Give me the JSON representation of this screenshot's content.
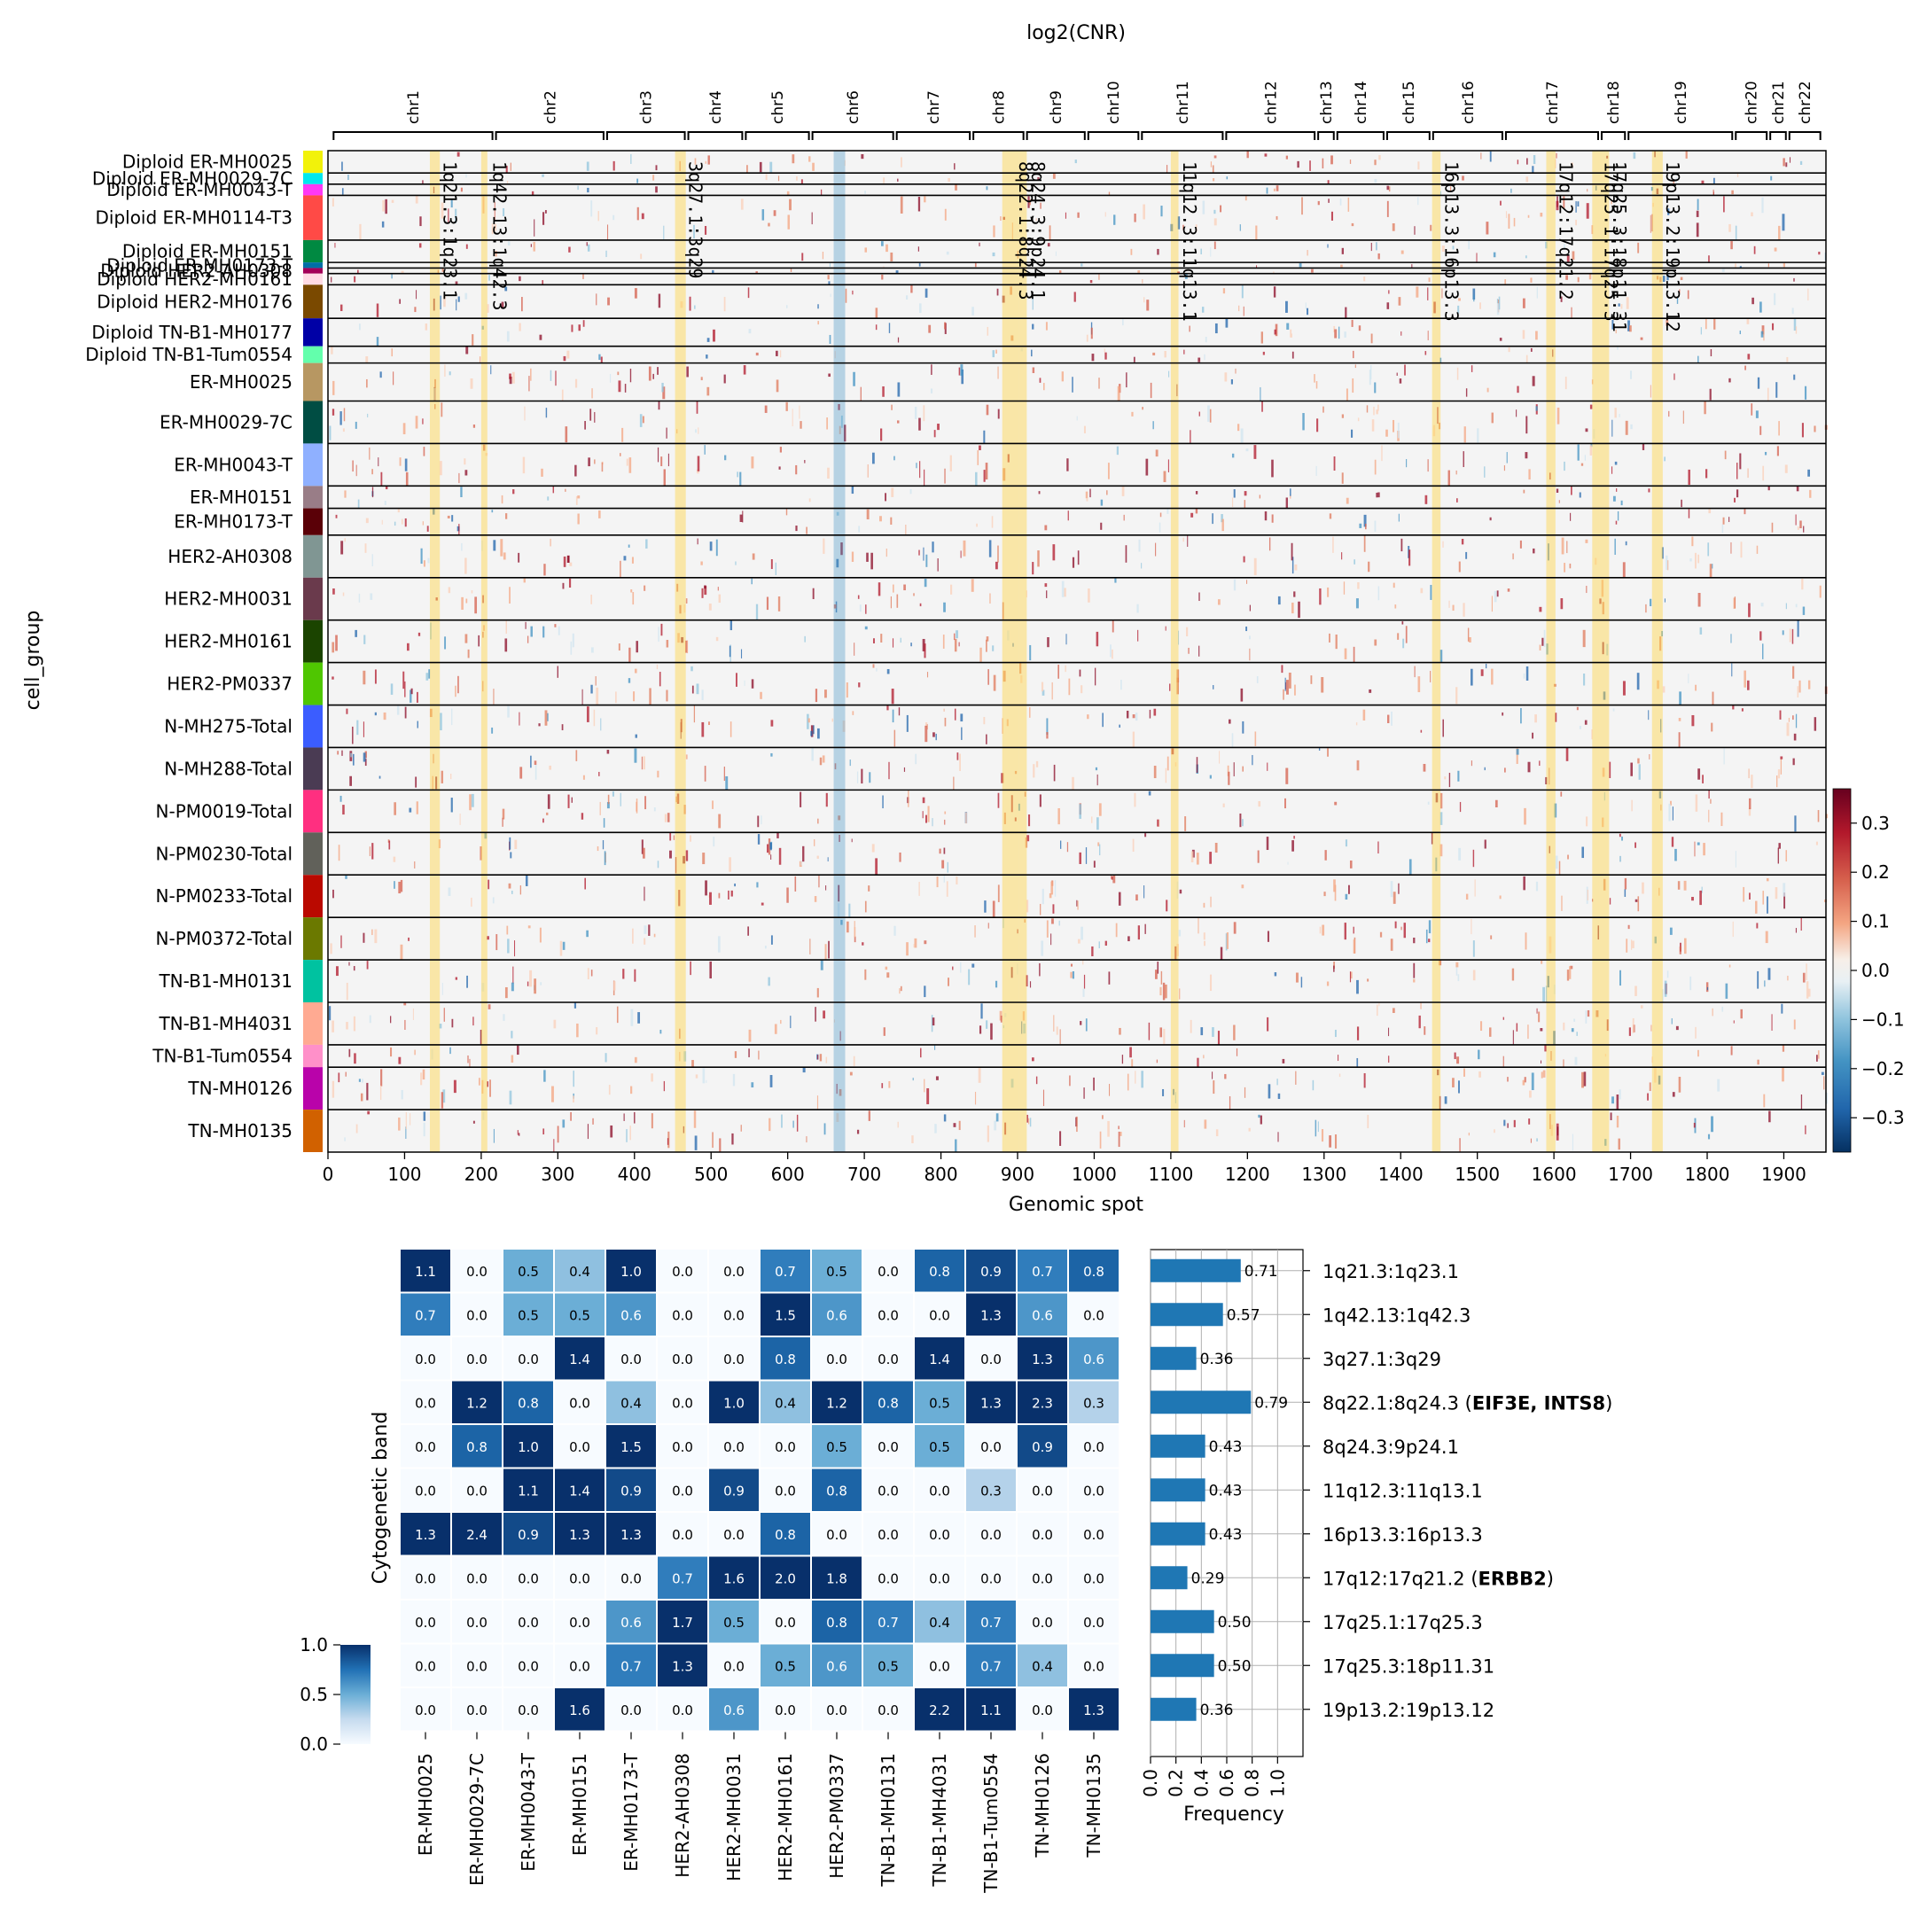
{
  "figure": {
    "title": "log2(CNR)"
  },
  "chart_data": [
    {
      "type": "heatmap",
      "title": "log2(CNR)",
      "xlabel": "Genomic spot",
      "ylabel": "cell_group",
      "xlim": [
        0,
        1955
      ],
      "xticks": [
        "0",
        "100",
        "200",
        "300",
        "400",
        "500",
        "600",
        "700",
        "800",
        "900",
        "1000",
        "1100",
        "1200",
        "1300",
        "1400",
        "1500",
        "1600",
        "1700",
        "1800",
        "1900"
      ],
      "chromosomes": [
        {
          "name": "chr1",
          "start": 5,
          "end": 217
        },
        {
          "name": "chr2",
          "start": 217,
          "end": 362
        },
        {
          "name": "chr3",
          "start": 362,
          "end": 468
        },
        {
          "name": "chr4",
          "start": 468,
          "end": 543
        },
        {
          "name": "chr5",
          "start": 543,
          "end": 630
        },
        {
          "name": "chr6",
          "start": 630,
          "end": 740
        },
        {
          "name": "chr7",
          "start": 740,
          "end": 840
        },
        {
          "name": "chr8",
          "start": 840,
          "end": 910
        },
        {
          "name": "chr9",
          "start": 910,
          "end": 990
        },
        {
          "name": "chr10",
          "start": 990,
          "end": 1060
        },
        {
          "name": "chr11",
          "start": 1060,
          "end": 1170
        },
        {
          "name": "chr12",
          "start": 1170,
          "end": 1290
        },
        {
          "name": "chr13",
          "start": 1290,
          "end": 1315
        },
        {
          "name": "chr14",
          "start": 1315,
          "end": 1380
        },
        {
          "name": "chr15",
          "start": 1380,
          "end": 1440
        },
        {
          "name": "chr16",
          "start": 1440,
          "end": 1535
        },
        {
          "name": "chr17",
          "start": 1535,
          "end": 1660
        },
        {
          "name": "chr18",
          "start": 1660,
          "end": 1695
        },
        {
          "name": "chr19",
          "start": 1695,
          "end": 1835
        },
        {
          "name": "chr20",
          "start": 1835,
          "end": 1880
        },
        {
          "name": "chr21",
          "start": 1880,
          "end": 1905
        },
        {
          "name": "chr22",
          "start": 1905,
          "end": 1950
        }
      ],
      "highlights": [
        {
          "label": "1q21.3:1q23.1",
          "start": 133,
          "end": 146
        },
        {
          "label": "1q42.13:1q42.3",
          "start": 200,
          "end": 208
        },
        {
          "label": "3q27.1:3q29",
          "start": 453,
          "end": 467
        },
        {
          "label": "8q22.1:8q24.3",
          "start": 880,
          "end": 902
        },
        {
          "label": "8q24.3:9p24.1",
          "start": 902,
          "end": 912
        },
        {
          "label": "11q12.3:11q13.1",
          "start": 1100,
          "end": 1110
        },
        {
          "label": "16p13.3:16p13.3",
          "start": 1441,
          "end": 1452
        },
        {
          "label": "17q12:17q21.2",
          "start": 1590,
          "end": 1602
        },
        {
          "label": "17q25.1:17q25.3",
          "start": 1650,
          "end": 1660
        },
        {
          "label": "17q25.3:18p11.31",
          "start": 1660,
          "end": 1672
        },
        {
          "label": "19p13.2:19p13.12",
          "start": 1728,
          "end": 1742
        }
      ],
      "cell_groups": [
        {
          "name": "Diploid ER-MH0025",
          "color": "#f2f20a",
          "rows": 1
        },
        {
          "name": "Diploid ER-MH0029-7C",
          "color": "#00e8ee",
          "rows": 0.5
        },
        {
          "name": "Diploid ER-MH0043-T",
          "color": "#ff38f5",
          "rows": 0.5
        },
        {
          "name": "Diploid ER-MH0114-T3",
          "color": "#ff4a46",
          "rows": 2
        },
        {
          "name": "Diploid ER-MH0151",
          "color": "#008941",
          "rows": 1
        },
        {
          "name": "Diploid ER-MH0173-T",
          "color": "#006fa6",
          "rows": 0.25
        },
        {
          "name": "Diploid HER2-AH0308",
          "color": "#a30059",
          "rows": 0.25
        },
        {
          "name": "Diploid HER2-MH0161",
          "color": "#ffdbe5",
          "rows": 0.5
        },
        {
          "name": "Diploid HER2-MH0176",
          "color": "#7a4900",
          "rows": 1.5
        },
        {
          "name": "Diploid TN-B1-MH0177",
          "color": "#0000a6",
          "rows": 1.25
        },
        {
          "name": "Diploid TN-B1-Tum0554",
          "color": "#63ffac",
          "rows": 0.75
        },
        {
          "name": "ER-MH0025",
          "color": "#b79762",
          "rows": 1.7
        },
        {
          "name": "ER-MH0029-7C",
          "color": "#004d43",
          "rows": 1.9
        },
        {
          "name": "ER-MH0043-T",
          "color": "#8fb0ff",
          "rows": 1.9
        },
        {
          "name": "ER-MH0151",
          "color": "#997d87",
          "rows": 1
        },
        {
          "name": "ER-MH0173-T",
          "color": "#5a0007",
          "rows": 1.2
        },
        {
          "name": "HER2-AH0308",
          "color": "#809693",
          "rows": 1.9
        },
        {
          "name": "HER2-MH0031",
          "color": "#6a3a4c",
          "rows": 1.9
        },
        {
          "name": "HER2-MH0161",
          "color": "#1b4400",
          "rows": 1.9
        },
        {
          "name": "HER2-PM0337",
          "color": "#4fc601",
          "rows": 1.9
        },
        {
          "name": "N-MH275-Total",
          "color": "#3b5dff",
          "rows": 1.9
        },
        {
          "name": "N-MH288-Total",
          "color": "#4a3b53",
          "rows": 1.9
        },
        {
          "name": "N-PM0019-Total",
          "color": "#ff2f80",
          "rows": 1.9
        },
        {
          "name": "N-PM0230-Total",
          "color": "#61615a",
          "rows": 1.9
        },
        {
          "name": "N-PM0233-Total",
          "color": "#ba0900",
          "rows": 1.9
        },
        {
          "name": "N-PM0372-Total",
          "color": "#6b7900",
          "rows": 1.9
        },
        {
          "name": "TN-B1-MH0131",
          "color": "#00c2a0",
          "rows": 1.9
        },
        {
          "name": "TN-B1-MH4031",
          "color": "#ffaa92",
          "rows": 1.9
        },
        {
          "name": "TN-B1-Tum0554",
          "color": "#ff90c9",
          "rows": 1
        },
        {
          "name": "TN-MH0126",
          "color": "#b903aa",
          "rows": 1.9
        },
        {
          "name": "TN-MH0135",
          "color": "#d16100",
          "rows": 1.9
        }
      ],
      "colorbar": {
        "vmin": -0.37,
        "vmax": 0.37,
        "ticks": [
          "0.3",
          "0.2",
          "0.1",
          "0.0",
          "−0.1",
          "−0.2",
          "−0.3"
        ],
        "colormap": "RdBu_r"
      }
    },
    {
      "type": "heatmap",
      "ylabel": "Cytogenetic band",
      "columns": [
        "ER-MH0025",
        "ER-MH0029-7C",
        "ER-MH0043-T",
        "ER-MH0151",
        "ER-MH0173-T",
        "HER2-AH0308",
        "HER2-MH0031",
        "HER2-MH0161",
        "HER2-PM0337",
        "TN-B1-MH0131",
        "TN-B1-MH4031",
        "TN-B1-Tum0554",
        "TN-MH0126",
        "TN-MH0135"
      ],
      "rows": [
        "1q21.3:1q23.1",
        "1q42.13:1q42.3",
        "3q27.1:3q29",
        "8q22.1:8q24.3",
        "8q24.3:9p24.1",
        "11q12.3:11q13.1",
        "16p13.3:16p13.3",
        "17q12:17q21.2",
        "17q25.1:17q25.3",
        "17q25.3:18p11.31",
        "19p13.2:19p13.12"
      ],
      "values": [
        [
          "1.1",
          "0.0",
          "0.5",
          "0.4",
          "1.0",
          "0.0",
          "0.0",
          "0.7",
          "0.5",
          "0.0",
          "0.8",
          "0.9",
          "0.7",
          "0.8"
        ],
        [
          "0.7",
          "0.0",
          "0.5",
          "0.5",
          "0.6",
          "0.0",
          "0.0",
          "1.5",
          "0.6",
          "0.0",
          "0.0",
          "1.3",
          "0.6",
          "0.0"
        ],
        [
          "0.0",
          "0.0",
          "0.0",
          "1.4",
          "0.0",
          "0.0",
          "0.0",
          "0.8",
          "0.0",
          "0.0",
          "1.4",
          "0.0",
          "1.3",
          "0.6"
        ],
        [
          "0.0",
          "1.2",
          "0.8",
          "0.0",
          "0.4",
          "0.0",
          "1.0",
          "0.4",
          "1.2",
          "0.8",
          "0.5",
          "1.3",
          "2.3",
          "0.3"
        ],
        [
          "0.0",
          "0.8",
          "1.0",
          "0.0",
          "1.5",
          "0.0",
          "0.0",
          "0.0",
          "0.5",
          "0.0",
          "0.5",
          "0.0",
          "0.9",
          "0.0"
        ],
        [
          "0.0",
          "0.0",
          "1.1",
          "1.4",
          "0.9",
          "0.0",
          "0.9",
          "0.0",
          "0.8",
          "0.0",
          "0.0",
          "0.3",
          "0.0",
          "0.0"
        ],
        [
          "1.3",
          "2.4",
          "0.9",
          "1.3",
          "1.3",
          "0.0",
          "0.0",
          "0.8",
          "0.0",
          "0.0",
          "0.0",
          "0.0",
          "0.0",
          "0.0"
        ],
        [
          "0.0",
          "0.0",
          "0.0",
          "0.0",
          "0.0",
          "0.7",
          "1.6",
          "2.0",
          "1.8",
          "0.0",
          "0.0",
          "0.0",
          "0.0",
          "0.0"
        ],
        [
          "0.0",
          "0.0",
          "0.0",
          "0.0",
          "0.6",
          "1.7",
          "0.5",
          "0.0",
          "0.8",
          "0.7",
          "0.4",
          "0.7",
          "0.0",
          "0.0"
        ],
        [
          "0.0",
          "0.0",
          "0.0",
          "0.0",
          "0.7",
          "1.3",
          "0.0",
          "0.5",
          "0.6",
          "0.5",
          "0.0",
          "0.7",
          "0.4",
          "0.0"
        ],
        [
          "0.0",
          "0.0",
          "0.0",
          "1.6",
          "0.0",
          "0.0",
          "0.6",
          "0.0",
          "0.0",
          "0.0",
          "2.2",
          "1.1",
          "0.0",
          "1.3"
        ]
      ],
      "colorbar": {
        "vmin": 0,
        "vmax": 1,
        "ticks": [
          "1.0",
          "0.5",
          "0.0"
        ],
        "colormap": "Blues"
      }
    },
    {
      "type": "bar",
      "orientation": "horizontal",
      "xlabel": "Frequency",
      "xlim": [
        0,
        1.2
      ],
      "xticks": [
        "0.0",
        "0.2",
        "0.4",
        "0.6",
        "0.8",
        "1.0"
      ],
      "categories": [
        {
          "band": "1q21.3:1q23.1",
          "genes": ""
        },
        {
          "band": "1q42.13:1q42.3",
          "genes": ""
        },
        {
          "band": "3q27.1:3q29",
          "genes": ""
        },
        {
          "band": "8q22.1:8q24.3",
          "genes": "EIF3E, INTS8"
        },
        {
          "band": "8q24.3:9p24.1",
          "genes": ""
        },
        {
          "band": "11q12.3:11q13.1",
          "genes": ""
        },
        {
          "band": "16p13.3:16p13.3",
          "genes": ""
        },
        {
          "band": "17q12:17q21.2",
          "genes": "ERBB2"
        },
        {
          "band": "17q25.1:17q25.3",
          "genes": ""
        },
        {
          "band": "17q25.3:18p11.31",
          "genes": ""
        },
        {
          "band": "19p13.2:19p13.12",
          "genes": ""
        }
      ],
      "values": [
        0.71,
        0.57,
        0.36,
        0.79,
        0.43,
        0.43,
        0.43,
        0.29,
        0.5,
        0.5,
        0.36
      ],
      "labels": [
        "0.71",
        "0.57",
        "0.36",
        "0.79",
        "0.43",
        "0.43",
        "0.43",
        "0.29",
        "0.50",
        "0.50",
        "0.36"
      ]
    }
  ]
}
